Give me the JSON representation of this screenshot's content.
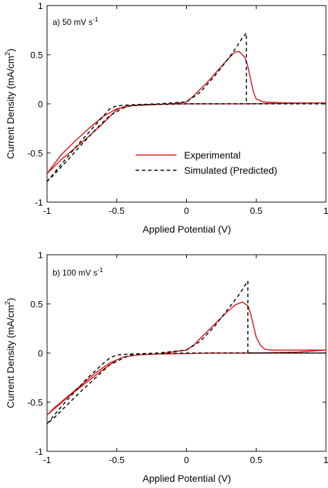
{
  "chart_data": [
    {
      "type": "line",
      "panel_label": "a) 50 mV s",
      "panel_label_sup": "-1",
      "xlabel": "Applied Potential (V)",
      "ylabel": "Current Density (mA/cm",
      "ylabel_sup": "2",
      "ylabel_end": ")",
      "xlim": [
        -1,
        1
      ],
      "ylim": [
        -1,
        1
      ],
      "xticks": [
        -1,
        -0.5,
        0,
        0.5,
        1
      ],
      "yticks": [
        -1,
        -0.5,
        0,
        0.5,
        1
      ],
      "xtick_labels": [
        "-1",
        "-0.5",
        "0",
        "0.5",
        "1"
      ],
      "ytick_labels": [
        "-1",
        "-0.5",
        "0",
        "0.5",
        "1"
      ],
      "legend_position": "center",
      "series": [
        {
          "name": "Experimental",
          "color": "#d7191c",
          "style": "solid",
          "points": [
            [
              -1,
              -0.71
            ],
            [
              -0.9,
              -0.57
            ],
            [
              -0.8,
              -0.45
            ],
            [
              -0.7,
              -0.33
            ],
            [
              -0.6,
              -0.2
            ],
            [
              -0.5,
              -0.06
            ],
            [
              -0.45,
              -0.03
            ],
            [
              -0.4,
              -0.02
            ],
            [
              -0.3,
              -0.01
            ],
            [
              -0.2,
              -0.005
            ],
            [
              -0.1,
              0.0
            ],
            [
              0,
              0.02
            ],
            [
              0.05,
              0.08
            ],
            [
              0.1,
              0.15
            ],
            [
              0.15,
              0.22
            ],
            [
              0.2,
              0.3
            ],
            [
              0.25,
              0.38
            ],
            [
              0.3,
              0.46
            ],
            [
              0.35,
              0.53
            ],
            [
              0.38,
              0.53
            ],
            [
              0.42,
              0.47
            ],
            [
              0.44,
              0.38
            ],
            [
              0.46,
              0.25
            ],
            [
              0.48,
              0.12
            ],
            [
              0.5,
              0.05
            ],
            [
              0.55,
              0.02
            ],
            [
              0.7,
              0.01
            ],
            [
              1,
              0.01
            ],
            [
              0.7,
              0.005
            ],
            [
              0.4,
              0.0
            ],
            [
              0.2,
              0.0
            ],
            [
              0,
              0.0
            ],
            [
              -0.2,
              -0.005
            ],
            [
              -0.4,
              -0.02
            ],
            [
              -0.5,
              -0.05
            ],
            [
              -0.6,
              -0.13
            ],
            [
              -0.7,
              -0.25
            ],
            [
              -0.8,
              -0.38
            ],
            [
              -0.9,
              -0.52
            ],
            [
              -1,
              -0.71
            ]
          ]
        },
        {
          "name": "Simulated (Predicted)",
          "color": "#000000",
          "style": "dashed",
          "points": [
            [
              -1,
              -0.79
            ],
            [
              -0.9,
              -0.62
            ],
            [
              -0.8,
              -0.45
            ],
            [
              -0.7,
              -0.29
            ],
            [
              -0.6,
              -0.13
            ],
            [
              -0.55,
              -0.05
            ],
            [
              -0.5,
              -0.02
            ],
            [
              -0.4,
              -0.01
            ],
            [
              -0.2,
              0.0
            ],
            [
              0,
              0.02
            ],
            [
              0.1,
              0.12
            ],
            [
              0.2,
              0.28
            ],
            [
              0.3,
              0.46
            ],
            [
              0.35,
              0.56
            ],
            [
              0.4,
              0.67
            ],
            [
              0.43,
              0.72
            ],
            [
              0.43,
              0.0
            ],
            [
              1,
              0.0
            ],
            [
              0.43,
              0.0
            ],
            [
              0,
              0.0
            ],
            [
              -0.3,
              -0.01
            ],
            [
              -0.4,
              -0.02
            ],
            [
              -0.45,
              -0.04
            ],
            [
              -0.55,
              -0.12
            ],
            [
              -0.65,
              -0.26
            ],
            [
              -0.75,
              -0.41
            ],
            [
              -0.85,
              -0.57
            ],
            [
              -0.95,
              -0.72
            ],
            [
              -1,
              -0.79
            ]
          ]
        }
      ]
    },
    {
      "type": "line",
      "panel_label": "b) 100 mV s",
      "panel_label_sup": "-1",
      "xlabel": "Applied Potential (V)",
      "ylabel": "Current Density (mA/cm",
      "ylabel_sup": "2",
      "ylabel_end": ")",
      "xlim": [
        -1,
        1
      ],
      "ylim": [
        -1,
        1
      ],
      "xticks": [
        -1,
        -0.5,
        0,
        0.5,
        1
      ],
      "yticks": [
        -1,
        -0.5,
        0,
        0.5,
        1
      ],
      "xtick_labels": [
        "-1",
        "-0.5",
        "0",
        "0.5",
        "1"
      ],
      "ytick_labels": [
        "-1",
        "-0.5",
        "0",
        "0.5",
        "1"
      ],
      "series": [
        {
          "name": "Experimental",
          "color": "#d7191c",
          "style": "solid",
          "points": [
            [
              -1,
              -0.63
            ],
            [
              -0.9,
              -0.51
            ],
            [
              -0.8,
              -0.39
            ],
            [
              -0.7,
              -0.28
            ],
            [
              -0.6,
              -0.17
            ],
            [
              -0.5,
              -0.07
            ],
            [
              -0.45,
              -0.04
            ],
            [
              -0.35,
              -0.02
            ],
            [
              -0.2,
              -0.01
            ],
            [
              0,
              0.03
            ],
            [
              0.05,
              0.08
            ],
            [
              0.1,
              0.15
            ],
            [
              0.15,
              0.22
            ],
            [
              0.2,
              0.29
            ],
            [
              0.25,
              0.36
            ],
            [
              0.3,
              0.43
            ],
            [
              0.35,
              0.49
            ],
            [
              0.4,
              0.52
            ],
            [
              0.44,
              0.48
            ],
            [
              0.46,
              0.4
            ],
            [
              0.48,
              0.28
            ],
            [
              0.5,
              0.16
            ],
            [
              0.53,
              0.08
            ],
            [
              0.56,
              0.04
            ],
            [
              0.6,
              0.03
            ],
            [
              0.8,
              0.03
            ],
            [
              1,
              0.03
            ],
            [
              0.8,
              0.01
            ],
            [
              0.5,
              0.0
            ],
            [
              0.2,
              0.0
            ],
            [
              0,
              -0.005
            ],
            [
              -0.2,
              -0.01
            ],
            [
              -0.35,
              -0.02
            ],
            [
              -0.45,
              -0.04
            ],
            [
              -0.55,
              -0.1
            ],
            [
              -0.65,
              -0.2
            ],
            [
              -0.75,
              -0.32
            ],
            [
              -0.85,
              -0.44
            ],
            [
              -0.95,
              -0.56
            ],
            [
              -1,
              -0.63
            ]
          ]
        },
        {
          "name": "Simulated (Predicted)",
          "color": "#000000",
          "style": "dashed",
          "points": [
            [
              -1,
              -0.72
            ],
            [
              -0.9,
              -0.55
            ],
            [
              -0.8,
              -0.39
            ],
            [
              -0.7,
              -0.24
            ],
            [
              -0.6,
              -0.11
            ],
            [
              -0.55,
              -0.05
            ],
            [
              -0.5,
              -0.02
            ],
            [
              -0.4,
              -0.01
            ],
            [
              -0.2,
              0.0
            ],
            [
              0,
              0.03
            ],
            [
              0.1,
              0.12
            ],
            [
              0.2,
              0.27
            ],
            [
              0.3,
              0.45
            ],
            [
              0.38,
              0.6
            ],
            [
              0.42,
              0.69
            ],
            [
              0.44,
              0.73
            ],
            [
              0.44,
              0.0
            ],
            [
              1,
              0.0
            ],
            [
              0.44,
              0.0
            ],
            [
              0,
              0.0
            ],
            [
              -0.3,
              -0.01
            ],
            [
              -0.4,
              -0.02
            ],
            [
              -0.45,
              -0.05
            ],
            [
              -0.55,
              -0.12
            ],
            [
              -0.65,
              -0.25
            ],
            [
              -0.75,
              -0.38
            ],
            [
              -0.85,
              -0.52
            ],
            [
              -0.95,
              -0.66
            ],
            [
              -1,
              -0.72
            ]
          ]
        }
      ]
    }
  ]
}
